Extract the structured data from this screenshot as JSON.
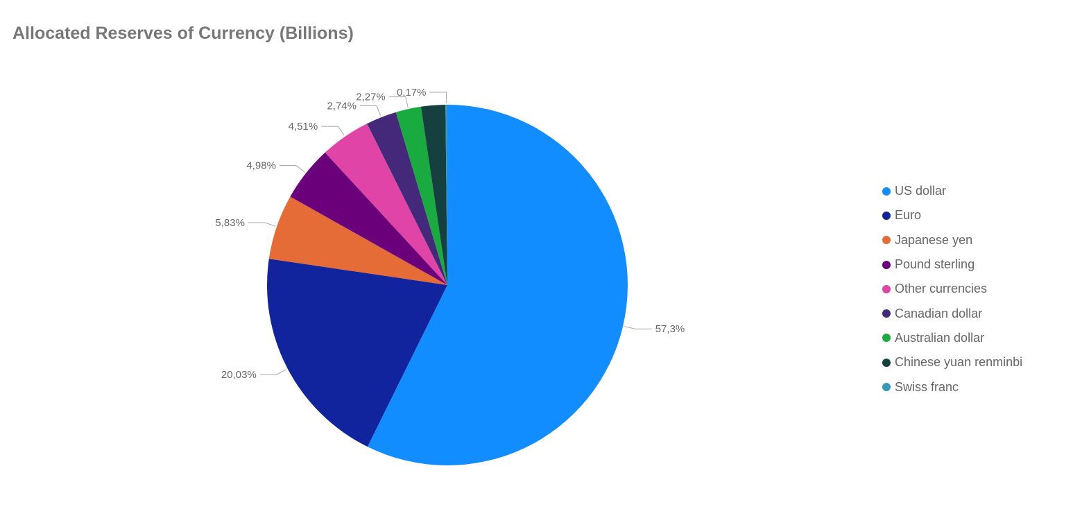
{
  "chart_data": {
    "type": "pie",
    "title": "Allocated Reserves of Currency (Billions)",
    "legend_position": "right",
    "slices": [
      {
        "name": "US dollar",
        "value": 57.3,
        "label": "57,3%",
        "color": "#118DFF"
      },
      {
        "name": "Euro",
        "value": 20.03,
        "label": "20,03%",
        "color": "#12239E"
      },
      {
        "name": "Japanese yen",
        "value": 5.83,
        "label": "5,83%",
        "color": "#E66C37"
      },
      {
        "name": "Pound sterling",
        "value": 4.98,
        "label": "4,98%",
        "color": "#6B007B"
      },
      {
        "name": "Other currencies",
        "value": 4.51,
        "label": "4,51%",
        "color": "#E044A7"
      },
      {
        "name": "Canadian dollar",
        "value": 2.74,
        "label": "2,74%",
        "color": "#44297A"
      },
      {
        "name": "Australian dollar",
        "value": 2.27,
        "label": "2,27%",
        "color": "#1AAB40"
      },
      {
        "name": "Chinese yuan renminbi",
        "value": 2.17,
        "label": "",
        "color": "#15403F"
      },
      {
        "name": "Swiss franc",
        "value": 0.17,
        "label": "0,17%",
        "color": "#3599B8"
      }
    ]
  }
}
